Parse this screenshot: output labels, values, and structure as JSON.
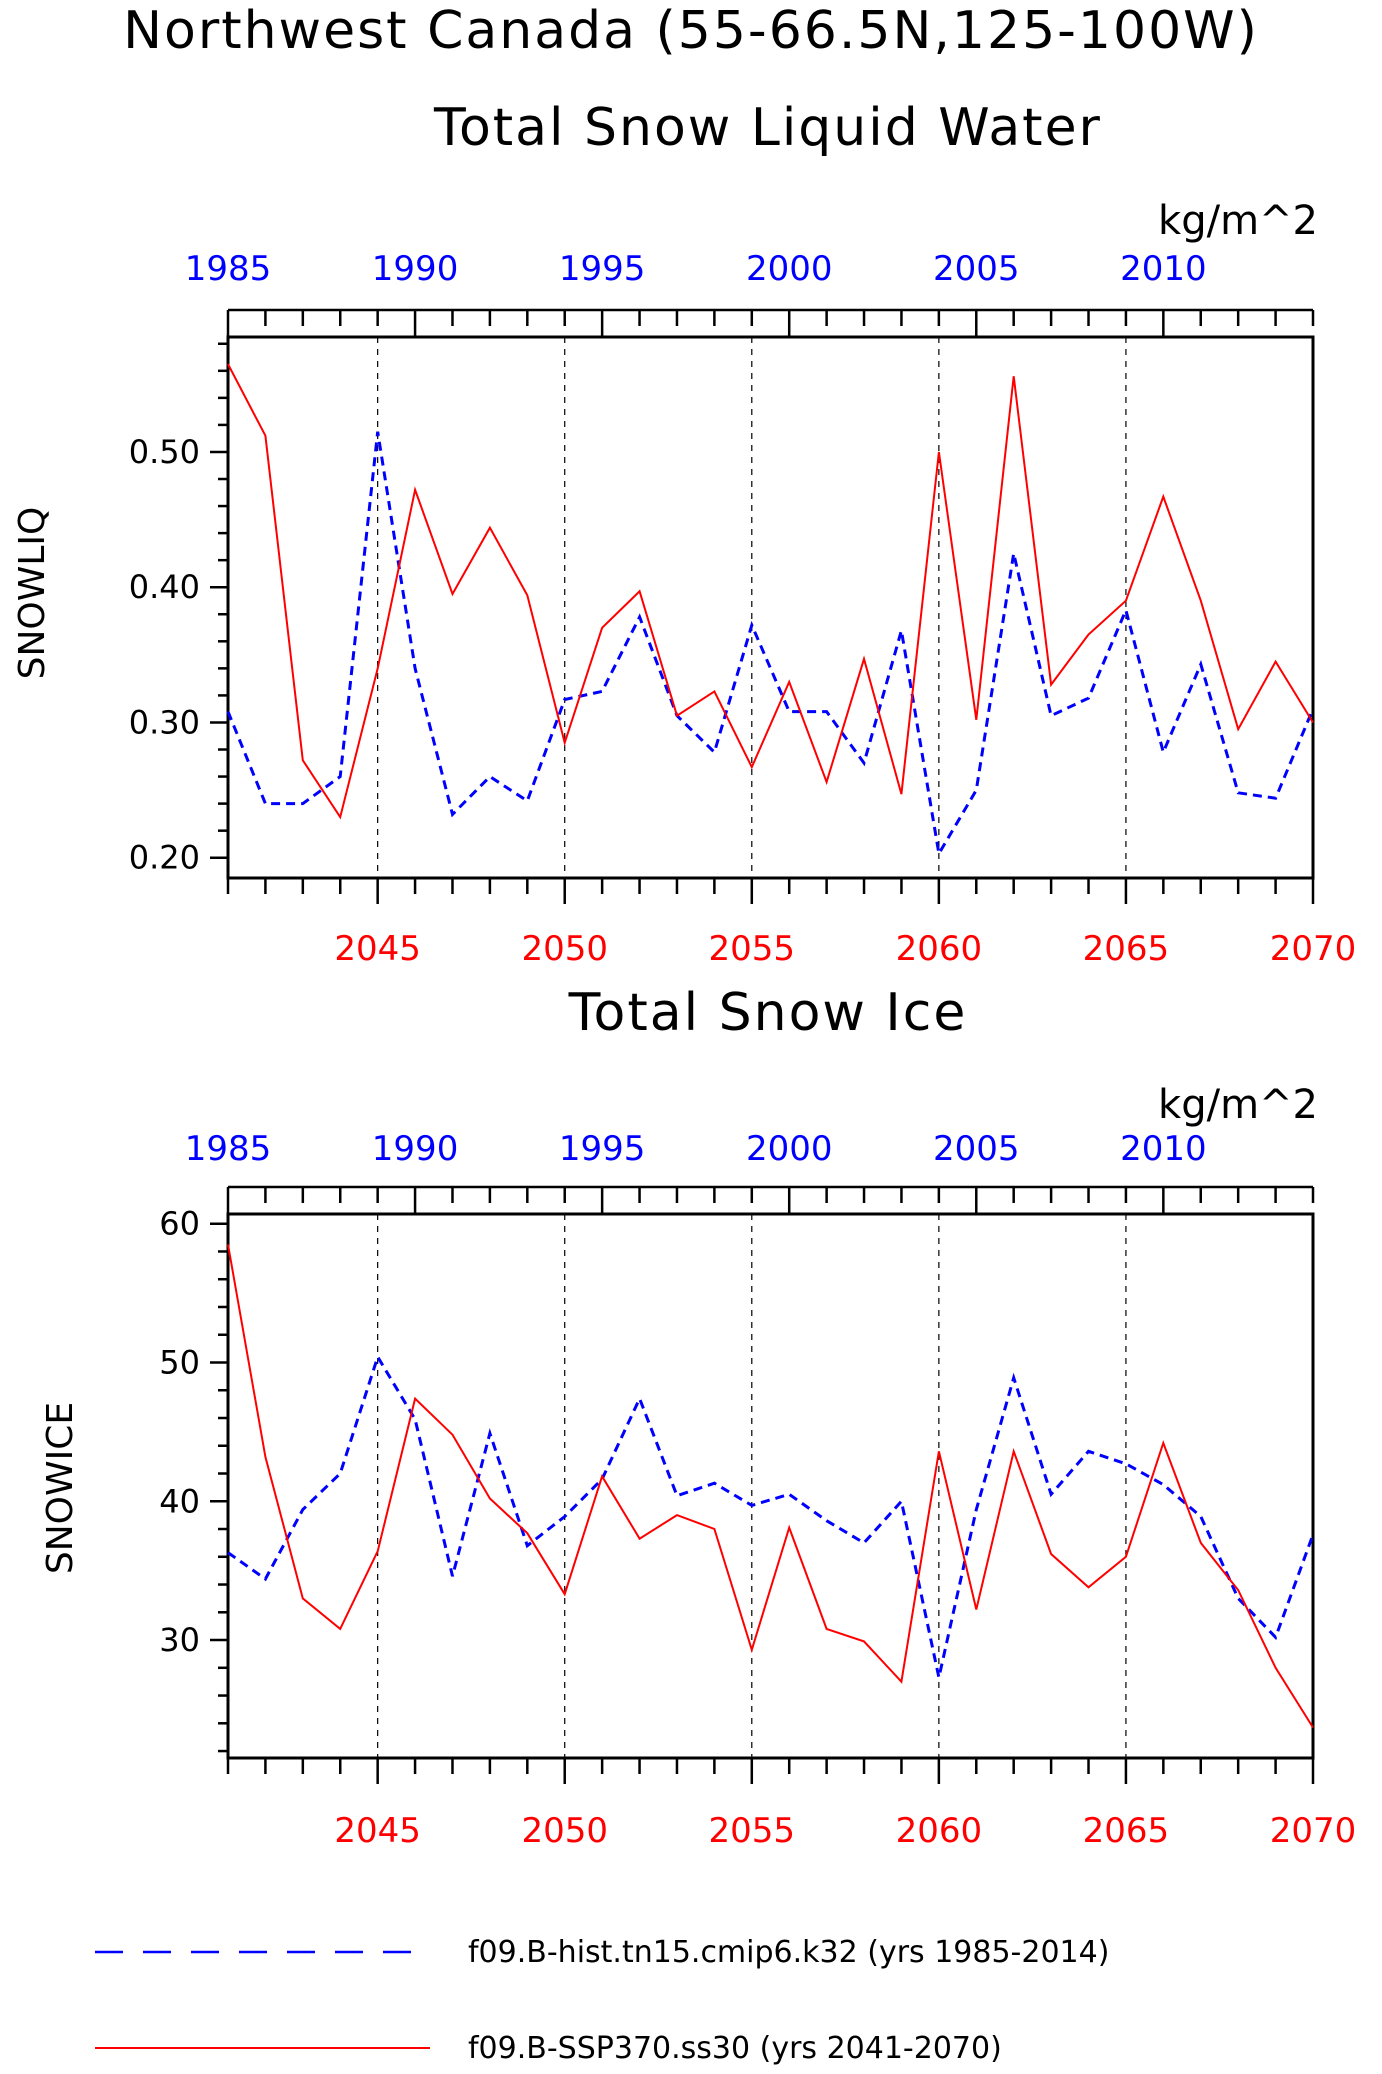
{
  "title": "Northwest Canada (55-66.5N,125-100W)",
  "legend": [
    {
      "label": "f09.B-hist.tn15.cmip6.k32 (yrs 1985-2014)",
      "color": "#0000ff",
      "style": "dashed"
    },
    {
      "label": "f09.B-SSP370.ss30 (yrs 2041-2070)",
      "color": "#ff0000",
      "style": "solid"
    }
  ],
  "chart_data": [
    {
      "type": "line",
      "title": "Total Snow Liquid Water",
      "units": "kg/m^2",
      "ylabel": "SNOWLIQ",
      "ylim": [
        0.185,
        0.585
      ],
      "yticks": [
        0.2,
        0.3,
        0.4,
        0.5
      ],
      "ytick_labels": [
        "0.20",
        "0.30",
        "0.40",
        "0.50"
      ],
      "xlim_top": [
        1985,
        2014
      ],
      "xticks_top": [
        "1985",
        "1990",
        "1995",
        "2000",
        "2005",
        "2010"
      ],
      "xlim_bottom": [
        2041,
        2070
      ],
      "xticks_bottom": [
        "2045",
        "2050",
        "2055",
        "2060",
        "2065",
        "2070"
      ],
      "grid": "dashed verticals at labeled bottom ticks",
      "series": [
        {
          "name": "f09.B-hist.tn15.cmip6.k32 (yrs 1985-2014)",
          "axis": "top",
          "color": "#0000ff",
          "style": "dashed",
          "x": [
            1985,
            1986,
            1987,
            1988,
            1989,
            1990,
            1991,
            1992,
            1993,
            1994,
            1995,
            1996,
            1997,
            1998,
            1999,
            2000,
            2001,
            2002,
            2003,
            2004,
            2005,
            2006,
            2007,
            2008,
            2009,
            2010,
            2011,
            2012,
            2013,
            2014
          ],
          "values": [
            0.308,
            0.24,
            0.24,
            0.26,
            0.515,
            0.34,
            0.232,
            0.26,
            0.242,
            0.317,
            0.323,
            0.378,
            0.305,
            0.278,
            0.372,
            0.308,
            0.308,
            0.27,
            0.368,
            0.203,
            0.25,
            0.425,
            0.305,
            0.318,
            0.383,
            0.278,
            0.343,
            0.248,
            0.244,
            0.31
          ]
        },
        {
          "name": "f09.B-SSP370.ss30 (yrs 2041-2070)",
          "axis": "bottom",
          "color": "#ff0000",
          "style": "solid",
          "x": [
            2041,
            2042,
            2043,
            2044,
            2045,
            2046,
            2047,
            2048,
            2049,
            2050,
            2051,
            2052,
            2053,
            2054,
            2055,
            2056,
            2057,
            2058,
            2059,
            2060,
            2061,
            2062,
            2063,
            2064,
            2065,
            2066,
            2067,
            2068,
            2069,
            2070
          ],
          "values": [
            0.565,
            0.512,
            0.272,
            0.23,
            0.34,
            0.472,
            0.395,
            0.444,
            0.394,
            0.285,
            0.37,
            0.397,
            0.305,
            0.323,
            0.267,
            0.33,
            0.256,
            0.347,
            0.247,
            0.5,
            0.302,
            0.556,
            0.328,
            0.365,
            0.39,
            0.467,
            0.39,
            0.295,
            0.345,
            0.3
          ]
        }
      ]
    },
    {
      "type": "line",
      "title": "Total Snow Ice",
      "units": "kg/m^2",
      "ylabel": "SNOWICE",
      "ylim": [
        21.5,
        60.7
      ],
      "yticks": [
        30,
        40,
        50,
        60
      ],
      "ytick_labels": [
        "30",
        "40",
        "50",
        "60"
      ],
      "xlim_top": [
        1985,
        2014
      ],
      "xticks_top": [
        "1985",
        "1990",
        "1995",
        "2000",
        "2005",
        "2010"
      ],
      "xlim_bottom": [
        2041,
        2070
      ],
      "xticks_bottom": [
        "2045",
        "2050",
        "2055",
        "2060",
        "2065",
        "2070"
      ],
      "grid": "dashed verticals at labeled bottom ticks",
      "series": [
        {
          "name": "f09.B-hist.tn15.cmip6.k32 (yrs 1985-2014)",
          "axis": "top",
          "color": "#0000ff",
          "style": "dashed",
          "x": [
            1985,
            1986,
            1987,
            1988,
            1989,
            1990,
            1991,
            1992,
            1993,
            1994,
            1995,
            1996,
            1997,
            1998,
            1999,
            2000,
            2001,
            2002,
            2003,
            2004,
            2005,
            2006,
            2007,
            2008,
            2009,
            2010,
            2011,
            2012,
            2013,
            2014
          ],
          "values": [
            36.3,
            34.4,
            39.4,
            42.0,
            50.4,
            45.9,
            34.6,
            44.9,
            36.8,
            38.9,
            41.6,
            47.4,
            40.4,
            41.3,
            39.7,
            40.5,
            38.6,
            37.0,
            40.0,
            27.3,
            39.4,
            48.9,
            40.5,
            43.6,
            42.7,
            41.2,
            38.9,
            33.0,
            30.2,
            37.6
          ]
        },
        {
          "name": "f09.B-SSP370.ss30 (yrs 2041-2070)",
          "axis": "bottom",
          "color": "#ff0000",
          "style": "solid",
          "x": [
            2041,
            2042,
            2043,
            2044,
            2045,
            2046,
            2047,
            2048,
            2049,
            2050,
            2051,
            2052,
            2053,
            2054,
            2055,
            2056,
            2057,
            2058,
            2059,
            2060,
            2061,
            2062,
            2063,
            2064,
            2065,
            2066,
            2067,
            2068,
            2069,
            2070
          ],
          "values": [
            58.5,
            43.2,
            33.0,
            30.8,
            36.4,
            47.4,
            44.8,
            40.2,
            37.7,
            33.3,
            41.8,
            37.3,
            39.0,
            38.0,
            29.3,
            38.1,
            30.8,
            29.9,
            27.0,
            43.6,
            32.2,
            43.6,
            36.2,
            33.8,
            36.0,
            44.2,
            37.0,
            33.6,
            28.0,
            23.7
          ]
        }
      ]
    }
  ]
}
